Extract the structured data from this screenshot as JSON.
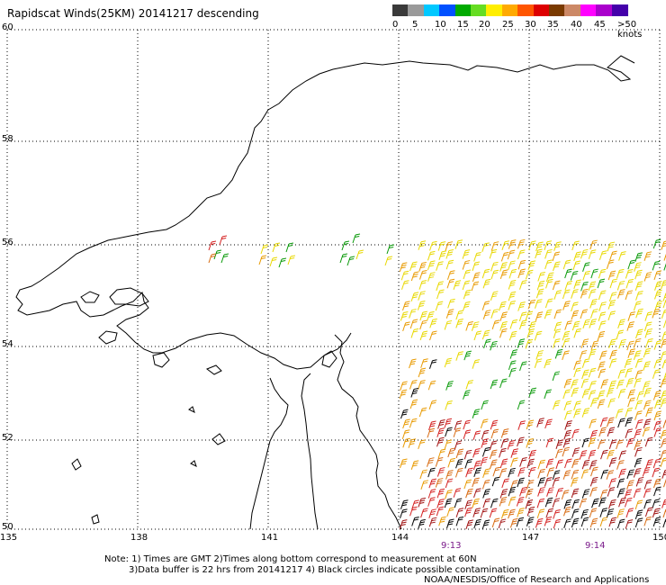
{
  "title": "Rapidscat Winds(25KM) 20141217 descending",
  "colorbar": {
    "colors": [
      "#3a3a3a",
      "#9a9a9a",
      "#00c8ff",
      "#0050ff",
      "#00aa00",
      "#66dd22",
      "#ffee00",
      "#ffaa00",
      "#ff5500",
      "#dd0000",
      "#7a3a00",
      "#cc8866",
      "#ff00ff",
      "#aa00cc",
      "#4400aa"
    ],
    "labels": [
      "0",
      "5",
      "10",
      "15",
      "20",
      "25",
      "30",
      "35",
      "40",
      "45",
      ">50 knots"
    ]
  },
  "map": {
    "lat_labels": [
      "60",
      "58",
      "56",
      "54",
      "52",
      "50"
    ],
    "lon_labels": [
      "135",
      "138",
      "141",
      "144",
      "147",
      "150"
    ],
    "time_labels": [
      "9:13",
      "9:14"
    ],
    "grid": "dotted",
    "coastline_color": "#000000"
  },
  "wind_colors": {
    "yellow": "#e8d800",
    "orange": "#e89a00",
    "darkorange": "#d86a10",
    "red": "#d42020",
    "darkred": "#a01010",
    "green": "#0a9a0a",
    "black": "#000000"
  },
  "notes": {
    "line1": "Note: 1) Times are GMT 2)Times along bottom correspond to measurement at 60N",
    "line2": "3)Data buffer is 22 hrs from 20141217 4) Black circles indicate possible contamination",
    "line3": "NOAA/NESDIS/Office of Research and Applications"
  }
}
